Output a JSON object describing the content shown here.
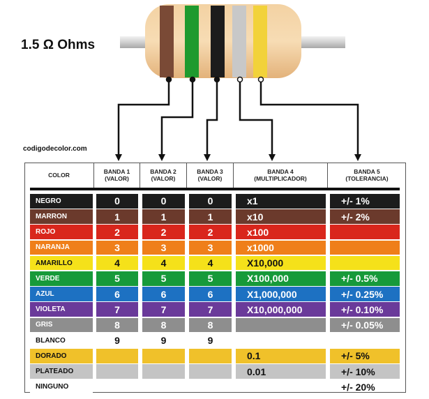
{
  "title": "1.5 Ω Ohms",
  "credit": "codigodecolor.com",
  "resistor_bands": [
    "#7a4a36",
    "#1f9a2e",
    "#1c1c1c",
    "#c8c8c8",
    "#f2d23a"
  ],
  "columns": [
    "COLOR",
    "BANDA 1\n(VALOR)",
    "BANDA 2\n(VALOR)",
    "BANDA 3\n(VALOR)",
    "BANDA 4\n(MULTIPLICADOR)",
    "BANDA 5\n(TOLERANCIA)"
  ],
  "rows": [
    {
      "name": "NEGRO",
      "color": "#1c1c1c",
      "text": "#ffffff",
      "b1": "0",
      "b2": "0",
      "b3": "0",
      "mult": "x1",
      "tol": "+/- 1%"
    },
    {
      "name": "MARRON",
      "color": "#6b3a2c",
      "text": "#ffffff",
      "b1": "1",
      "b2": "1",
      "b3": "1",
      "mult": "x10",
      "tol": "+/- 2%"
    },
    {
      "name": "ROJO",
      "color": "#d9261c",
      "text": "#ffffff",
      "b1": "2",
      "b2": "2",
      "b3": "2",
      "mult": "x100",
      "tol": ""
    },
    {
      "name": "NARANJA",
      "color": "#ef7f1a",
      "text": "#ffffff",
      "b1": "3",
      "b2": "3",
      "b3": "3",
      "mult": "x1000",
      "tol": ""
    },
    {
      "name": "AMARILLO",
      "color": "#f5e11a",
      "text": "#111111",
      "b1": "4",
      "b2": "4",
      "b3": "4",
      "mult": "X10,000",
      "tol": ""
    },
    {
      "name": "VERDE",
      "color": "#179a3a",
      "text": "#ffffff",
      "b1": "5",
      "b2": "5",
      "b3": "5",
      "mult": "X100,000",
      "tol": "+/- 0.5%"
    },
    {
      "name": "AZUL",
      "color": "#1d71c2",
      "text": "#ffffff",
      "b1": "6",
      "b2": "6",
      "b3": "6",
      "mult": "X1,000,000",
      "tol": "+/- 0.25%"
    },
    {
      "name": "VIOLETA",
      "color": "#6a3a9a",
      "text": "#ffffff",
      "b1": "7",
      "b2": "7",
      "b3": "7",
      "mult": "X10,000,000",
      "tol": "+/- 0.10%"
    },
    {
      "name": "GRIS",
      "color": "#8e8e8e",
      "text": "#ffffff",
      "b1": "8",
      "b2": "8",
      "b3": "8",
      "mult": "",
      "tol": "+/- 0.05%"
    },
    {
      "name": "BLANCO",
      "color": "#ffffff",
      "text": "#111111",
      "b1": "9",
      "b2": "9",
      "b3": "9",
      "mult": "",
      "tol": ""
    },
    {
      "name": "DORADO",
      "color": "#f0c12a",
      "text": "#111111",
      "b1": "",
      "b2": "",
      "b3": "",
      "mult": "0.1",
      "tol": "+/- 5%"
    },
    {
      "name": "PLATEADO",
      "color": "#c4c4c4",
      "text": "#111111",
      "b1": "",
      "b2": "",
      "b3": "",
      "mult": "0.01",
      "tol": "+/- 10%"
    },
    {
      "name": "NINGUNO",
      "color": "#ffffff",
      "text": "#111111",
      "b1": "",
      "b2": "",
      "b3": "",
      "mult": "",
      "tol": "+/- 20%"
    }
  ]
}
